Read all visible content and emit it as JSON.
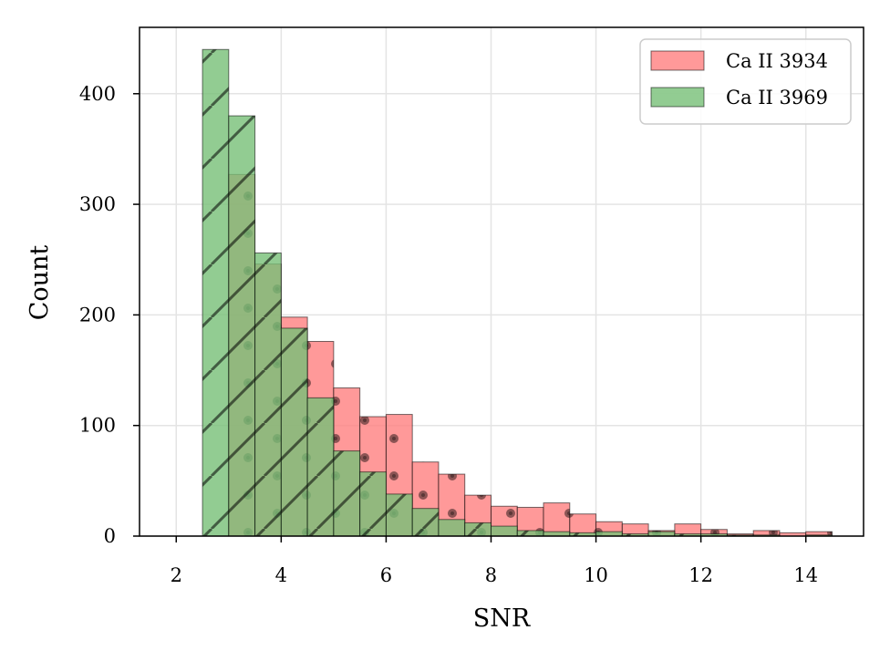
{
  "chart_data": {
    "type": "bar",
    "xlabel": "SNR",
    "ylabel": "Count",
    "xlim": [
      1.3,
      15.1
    ],
    "ylim": [
      0,
      460
    ],
    "xticks": [
      2,
      4,
      6,
      8,
      10,
      12,
      14
    ],
    "yticks": [
      0,
      100,
      200,
      300,
      400
    ],
    "grid": true,
    "legend_position": "top-right",
    "series": [
      {
        "name": "Ca II 3934",
        "color": "#ff7f7f",
        "hatch": "dots",
        "bins": [
          {
            "x0": 3.0,
            "x1": 3.5,
            "value": 327
          },
          {
            "x0": 3.5,
            "x1": 4.0,
            "value": 246
          },
          {
            "x0": 4.0,
            "x1": 4.5,
            "value": 198
          },
          {
            "x0": 4.5,
            "x1": 5.0,
            "value": 176
          },
          {
            "x0": 5.0,
            "x1": 5.5,
            "value": 134
          },
          {
            "x0": 5.5,
            "x1": 6.0,
            "value": 108
          },
          {
            "x0": 6.0,
            "x1": 6.5,
            "value": 110
          },
          {
            "x0": 6.5,
            "x1": 7.0,
            "value": 67
          },
          {
            "x0": 7.0,
            "x1": 7.5,
            "value": 56
          },
          {
            "x0": 7.5,
            "x1": 8.0,
            "value": 37
          },
          {
            "x0": 8.0,
            "x1": 8.5,
            "value": 27
          },
          {
            "x0": 8.5,
            "x1": 9.0,
            "value": 26
          },
          {
            "x0": 9.0,
            "x1": 9.5,
            "value": 30
          },
          {
            "x0": 9.5,
            "x1": 10.0,
            "value": 20
          },
          {
            "x0": 10.0,
            "x1": 10.5,
            "value": 13
          },
          {
            "x0": 10.5,
            "x1": 11.0,
            "value": 11
          },
          {
            "x0": 11.0,
            "x1": 11.5,
            "value": 5
          },
          {
            "x0": 11.5,
            "x1": 12.0,
            "value": 11
          },
          {
            "x0": 12.0,
            "x1": 12.5,
            "value": 6
          },
          {
            "x0": 12.5,
            "x1": 13.0,
            "value": 2
          },
          {
            "x0": 13.0,
            "x1": 13.5,
            "value": 5
          },
          {
            "x0": 13.5,
            "x1": 14.0,
            "value": 3
          },
          {
            "x0": 14.0,
            "x1": 14.5,
            "value": 4
          }
        ]
      },
      {
        "name": "Ca II 3969",
        "color": "#77bf77",
        "hatch": "diagonal",
        "bins": [
          {
            "x0": 2.5,
            "x1": 3.0,
            "value": 440
          },
          {
            "x0": 3.0,
            "x1": 3.5,
            "value": 380
          },
          {
            "x0": 3.5,
            "x1": 4.0,
            "value": 256
          },
          {
            "x0": 4.0,
            "x1": 4.5,
            "value": 188
          },
          {
            "x0": 4.5,
            "x1": 5.0,
            "value": 125
          },
          {
            "x0": 5.0,
            "x1": 5.5,
            "value": 77
          },
          {
            "x0": 5.5,
            "x1": 6.0,
            "value": 58
          },
          {
            "x0": 6.0,
            "x1": 6.5,
            "value": 38
          },
          {
            "x0": 6.5,
            "x1": 7.0,
            "value": 25
          },
          {
            "x0": 7.0,
            "x1": 7.5,
            "value": 15
          },
          {
            "x0": 7.5,
            "x1": 8.0,
            "value": 12
          },
          {
            "x0": 8.0,
            "x1": 8.5,
            "value": 9
          },
          {
            "x0": 8.5,
            "x1": 9.0,
            "value": 5
          },
          {
            "x0": 9.0,
            "x1": 9.5,
            "value": 4
          },
          {
            "x0": 9.5,
            "x1": 10.0,
            "value": 3
          },
          {
            "x0": 10.0,
            "x1": 10.5,
            "value": 4
          },
          {
            "x0": 10.5,
            "x1": 11.0,
            "value": 2
          },
          {
            "x0": 11.0,
            "x1": 11.5,
            "value": 4
          },
          {
            "x0": 11.5,
            "x1": 12.0,
            "value": 2
          },
          {
            "x0": 12.0,
            "x1": 12.5,
            "value": 2
          },
          {
            "x0": 12.5,
            "x1": 13.0,
            "value": 1
          },
          {
            "x0": 13.0,
            "x1": 13.5,
            "value": 1
          },
          {
            "x0": 13.5,
            "x1": 14.0,
            "value": 0
          },
          {
            "x0": 14.0,
            "x1": 14.5,
            "value": 1
          }
        ]
      }
    ]
  }
}
